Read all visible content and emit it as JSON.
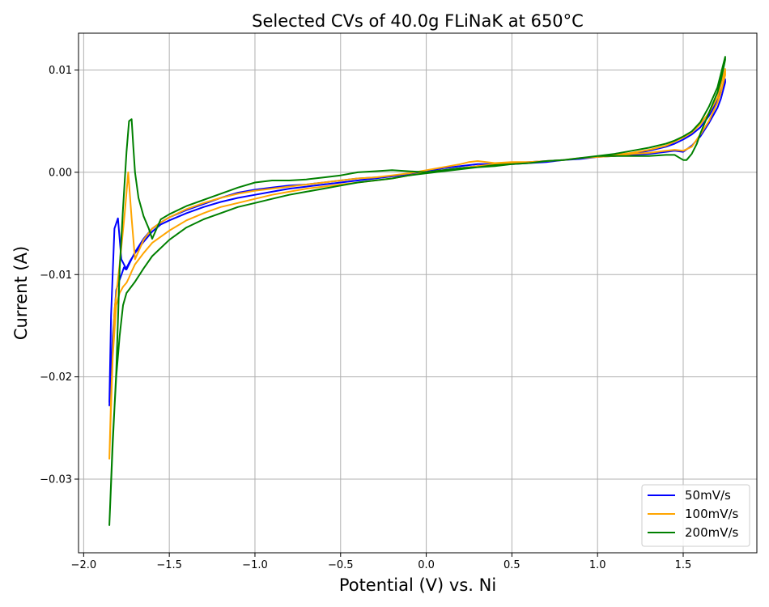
{
  "chart_data": {
    "type": "line",
    "title": "Selected CVs of 40.0g FLiNaK at 650°C",
    "xlabel": "Potential (V) vs. Ni",
    "ylabel": "Current (A)",
    "xlim": [
      -2.03,
      1.93
    ],
    "ylim": [
      -0.0372,
      0.0136
    ],
    "xticks": [
      -2.0,
      -1.5,
      -1.0,
      -0.5,
      0.0,
      0.5,
      1.0,
      1.5
    ],
    "xtick_labels": [
      "−2.0",
      "−1.5",
      "−1.0",
      "−0.5",
      "0.0",
      "0.5",
      "1.0",
      "1.5"
    ],
    "yticks": [
      -0.03,
      -0.02,
      -0.01,
      0.0,
      0.01
    ],
    "ytick_labels": [
      "−0.03",
      "−0.02",
      "−0.01",
      "0.00",
      "0.01"
    ],
    "grid": true,
    "legend_position": "lower-right",
    "series": [
      {
        "name": "50mV/s",
        "color": "#0000ff",
        "x": [
          -1.85,
          -1.83,
          -1.81,
          -1.79,
          -1.775,
          -1.765,
          -1.755,
          -1.745,
          -1.73,
          -1.7,
          -1.65,
          -1.6,
          -1.55,
          -1.5,
          -1.4,
          -1.3,
          -1.2,
          -1.1,
          -1.0,
          -0.9,
          -0.8,
          -0.7,
          -0.6,
          -0.5,
          -0.4,
          -0.3,
          -0.2,
          -0.1,
          0.0,
          0.1,
          0.2,
          0.3,
          0.4,
          0.5,
          0.6,
          0.7,
          0.8,
          0.9,
          1.0,
          1.1,
          1.2,
          1.3,
          1.4,
          1.45,
          1.5,
          1.55,
          1.6,
          1.65,
          1.7,
          1.745,
          1.745,
          1.72,
          1.7,
          1.65,
          1.6,
          1.55,
          1.5,
          1.45,
          1.4,
          1.3,
          1.2,
          1.1,
          1.0,
          0.9,
          0.8,
          0.7,
          0.6,
          0.5,
          0.4,
          0.35,
          0.3,
          0.25,
          0.2,
          0.1,
          0.0,
          -0.1,
          -0.2,
          -0.3,
          -0.4,
          -0.5,
          -0.6,
          -0.7,
          -0.8,
          -0.9,
          -1.0,
          -1.1,
          -1.2,
          -1.3,
          -1.4,
          -1.5,
          -1.55,
          -1.6,
          -1.65,
          -1.7,
          -1.75,
          -1.78,
          -1.8,
          -1.82,
          -1.84,
          -1.85
        ],
        "y": [
          -0.0228,
          -0.016,
          -0.0115,
          -0.0105,
          -0.0098,
          -0.0093,
          -0.0095,
          -0.0092,
          -0.0087,
          -0.0079,
          -0.0068,
          -0.0058,
          -0.0051,
          -0.0047,
          -0.004,
          -0.0034,
          -0.0029,
          -0.0025,
          -0.0022,
          -0.0019,
          -0.0016,
          -0.0014,
          -0.0012,
          -0.001,
          -0.0008,
          -0.0006,
          -0.0004,
          -0.0002,
          0.0,
          0.0002,
          0.0004,
          0.0006,
          0.0008,
          0.0009,
          0.001,
          0.0011,
          0.0012,
          0.0013,
          0.0015,
          0.0016,
          0.0018,
          0.0021,
          0.0025,
          0.0028,
          0.0032,
          0.0037,
          0.0044,
          0.0055,
          0.007,
          0.0091,
          0.0088,
          0.0072,
          0.0063,
          0.0048,
          0.0035,
          0.0026,
          0.002,
          0.0021,
          0.002,
          0.0018,
          0.0017,
          0.0016,
          0.0015,
          0.0013,
          0.0012,
          0.001,
          0.0009,
          0.0008,
          0.0008,
          0.0008,
          0.0008,
          0.0007,
          0.0006,
          0.0004,
          0.0001,
          -0.0002,
          -0.0004,
          -0.0005,
          -0.0006,
          -0.0008,
          -0.001,
          -0.0012,
          -0.0013,
          -0.0015,
          -0.0017,
          -0.002,
          -0.0025,
          -0.0031,
          -0.0037,
          -0.0044,
          -0.0049,
          -0.0055,
          -0.0065,
          -0.0078,
          -0.0095,
          -0.0085,
          -0.0045,
          -0.0055,
          -0.014,
          -0.0225
        ]
      },
      {
        "name": "100mV/s",
        "color": "#ffa500",
        "x": [
          -1.85,
          -1.83,
          -1.81,
          -1.79,
          -1.77,
          -1.75,
          -1.735,
          -1.72,
          -1.7,
          -1.65,
          -1.6,
          -1.5,
          -1.4,
          -1.3,
          -1.2,
          -1.1,
          -1.0,
          -0.9,
          -0.8,
          -0.7,
          -0.6,
          -0.5,
          -0.4,
          -0.3,
          -0.2,
          -0.1,
          0.0,
          0.1,
          0.2,
          0.3,
          0.4,
          0.5,
          0.6,
          0.7,
          0.8,
          0.9,
          1.0,
          1.1,
          1.2,
          1.3,
          1.4,
          1.45,
          1.5,
          1.55,
          1.6,
          1.65,
          1.7,
          1.745,
          1.745,
          1.72,
          1.7,
          1.65,
          1.6,
          1.55,
          1.5,
          1.45,
          1.4,
          1.3,
          1.2,
          1.1,
          1.0,
          0.9,
          0.8,
          0.7,
          0.6,
          0.5,
          0.4,
          0.35,
          0.3,
          0.25,
          0.2,
          0.1,
          0.0,
          -0.1,
          -0.2,
          -0.3,
          -0.4,
          -0.5,
          -0.6,
          -0.7,
          -0.8,
          -0.9,
          -1.0,
          -1.1,
          -1.2,
          -1.3,
          -1.4,
          -1.5,
          -1.55,
          -1.6,
          -1.65,
          -1.7,
          -1.72,
          -1.74,
          -1.76,
          -1.79,
          -1.82,
          -1.84,
          -1.85
        ],
        "y": [
          -0.028,
          -0.018,
          -0.013,
          -0.0118,
          -0.0112,
          -0.0108,
          -0.0103,
          -0.0097,
          -0.009,
          -0.0079,
          -0.0069,
          -0.0057,
          -0.0047,
          -0.004,
          -0.0034,
          -0.003,
          -0.0026,
          -0.0022,
          -0.0019,
          -0.0016,
          -0.0014,
          -0.0012,
          -0.001,
          -0.0008,
          -0.0006,
          -0.0003,
          0.0,
          0.0002,
          0.0004,
          0.0006,
          0.0008,
          0.0009,
          0.001,
          0.0011,
          0.0012,
          0.0014,
          0.0015,
          0.0017,
          0.0019,
          0.0022,
          0.0026,
          0.003,
          0.0034,
          0.0039,
          0.0047,
          0.0058,
          0.0073,
          0.0101,
          0.0095,
          0.0078,
          0.0068,
          0.005,
          0.0037,
          0.0025,
          0.0021,
          0.0022,
          0.0021,
          0.0019,
          0.0018,
          0.0016,
          0.0015,
          0.0014,
          0.0012,
          0.0011,
          0.001,
          0.001,
          0.0009,
          0.001,
          0.0011,
          0.001,
          0.0008,
          0.0005,
          0.0002,
          -0.0001,
          -0.0003,
          -0.0005,
          -0.0006,
          -0.0008,
          -0.001,
          -0.0012,
          -0.0014,
          -0.0016,
          -0.0018,
          -0.0021,
          -0.0025,
          -0.003,
          -0.0036,
          -0.0044,
          -0.0049,
          -0.0055,
          -0.0066,
          -0.0085,
          -0.0045,
          0.0,
          -0.004,
          -0.009,
          -0.0135,
          -0.022,
          -0.028
        ]
      },
      {
        "name": "200mV/s",
        "color": "#008000",
        "x": [
          -1.85,
          -1.83,
          -1.81,
          -1.79,
          -1.77,
          -1.75,
          -1.7,
          -1.65,
          -1.6,
          -1.5,
          -1.4,
          -1.3,
          -1.2,
          -1.1,
          -1.0,
          -0.9,
          -0.8,
          -0.7,
          -0.6,
          -0.5,
          -0.4,
          -0.3,
          -0.2,
          -0.1,
          0.0,
          0.1,
          0.2,
          0.3,
          0.4,
          0.5,
          0.6,
          0.7,
          0.8,
          0.9,
          1.0,
          1.1,
          1.2,
          1.3,
          1.4,
          1.45,
          1.5,
          1.55,
          1.6,
          1.65,
          1.7,
          1.745,
          1.745,
          1.72,
          1.7,
          1.65,
          1.6,
          1.58,
          1.55,
          1.52,
          1.5,
          1.48,
          1.45,
          1.4,
          1.3,
          1.2,
          1.1,
          1.0,
          0.9,
          0.8,
          0.7,
          0.6,
          0.5,
          0.4,
          0.3,
          0.2,
          0.1,
          0.0,
          -0.1,
          -0.2,
          -0.3,
          -0.4,
          -0.5,
          -0.6,
          -0.7,
          -0.8,
          -0.9,
          -1.0,
          -1.1,
          -1.2,
          -1.3,
          -1.4,
          -1.5,
          -1.55,
          -1.6,
          -1.62,
          -1.65,
          -1.68,
          -1.7,
          -1.71,
          -1.72,
          -1.735,
          -1.75,
          -1.77,
          -1.79,
          -1.81,
          -1.83,
          -1.85
        ],
        "y": [
          -0.0345,
          -0.026,
          -0.02,
          -0.016,
          -0.013,
          -0.0118,
          -0.0107,
          -0.0094,
          -0.0082,
          -0.0066,
          -0.0054,
          -0.0046,
          -0.004,
          -0.0034,
          -0.003,
          -0.0026,
          -0.0022,
          -0.0019,
          -0.0016,
          -0.0013,
          -0.001,
          -0.0008,
          -0.0006,
          -0.0003,
          -0.0001,
          0.0001,
          0.0003,
          0.0005,
          0.0006,
          0.0008,
          0.0009,
          0.0011,
          0.0012,
          0.0014,
          0.0016,
          0.0018,
          0.0021,
          0.0024,
          0.0028,
          0.0031,
          0.0035,
          0.004,
          0.0049,
          0.0064,
          0.0083,
          0.0113,
          0.011,
          0.009,
          0.0078,
          0.0058,
          0.0038,
          0.0028,
          0.0018,
          0.0012,
          0.0012,
          0.0014,
          0.0017,
          0.0017,
          0.0016,
          0.0016,
          0.0016,
          0.0016,
          0.0014,
          0.0012,
          0.0011,
          0.0009,
          0.0008,
          0.0007,
          0.0005,
          0.0004,
          0.0002,
          0.0,
          0.0001,
          0.0002,
          0.0001,
          0.0,
          -0.0003,
          -0.0005,
          -0.0007,
          -0.0008,
          -0.0008,
          -0.001,
          -0.0015,
          -0.0021,
          -0.0027,
          -0.0033,
          -0.0041,
          -0.0046,
          -0.0065,
          -0.0055,
          -0.0043,
          -0.0025,
          0.0,
          0.0025,
          0.0052,
          0.005,
          0.002,
          -0.0035,
          -0.0095,
          -0.0195,
          -0.0265,
          -0.0345
        ]
      }
    ]
  }
}
